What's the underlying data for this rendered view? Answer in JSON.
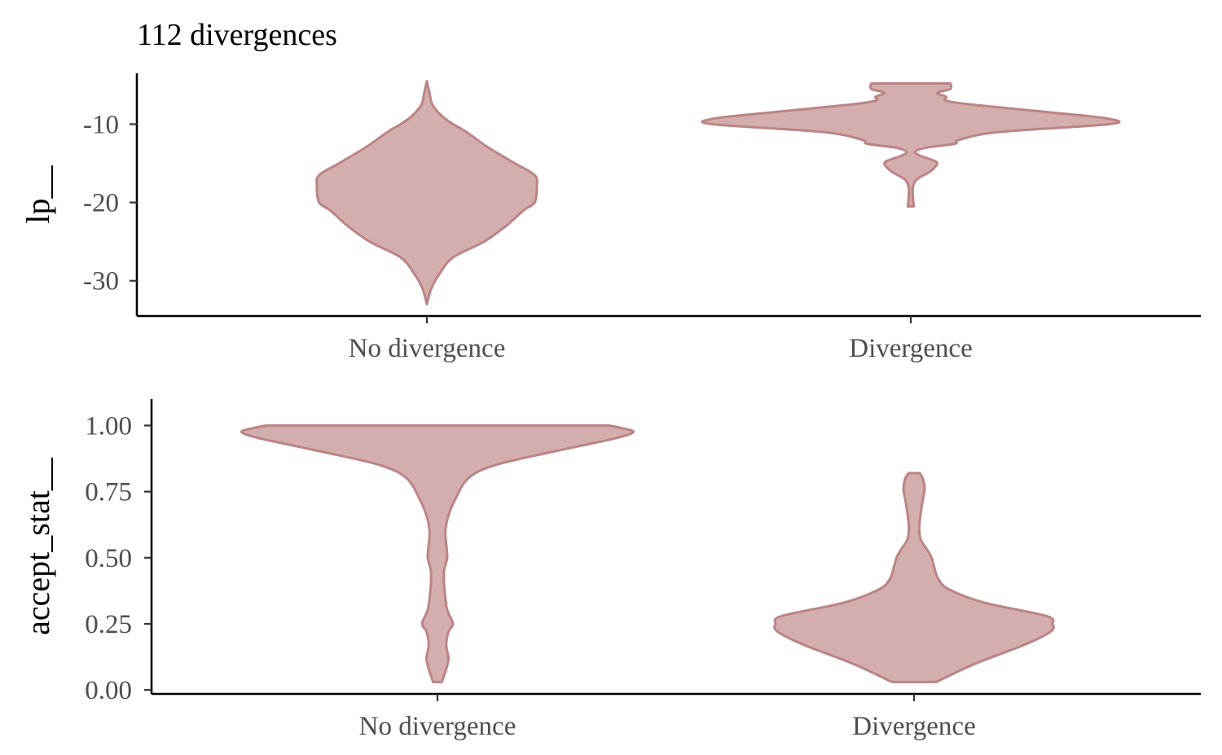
{
  "title": "112 divergences",
  "colors": {
    "fill": "#d4adae",
    "outline": "#bb8485"
  },
  "chart_data": [
    {
      "type": "violin",
      "ylabel": "lp__",
      "xlabel": "",
      "categories": [
        "No divergence",
        "Divergence"
      ],
      "ylim": [
        -34.5,
        -3.5
      ],
      "yticks": [
        -10,
        -20,
        -30
      ],
      "ytick_labels": [
        "-10",
        "-20",
        "-30"
      ],
      "series": [
        {
          "category": "No divergence",
          "profile": [
            [
              -33.0,
              0.0
            ],
            [
              -31.0,
              0.01
            ],
            [
              -29.0,
              0.03
            ],
            [
              -27.0,
              0.06
            ],
            [
              -25.0,
              0.13
            ],
            [
              -23.0,
              0.18
            ],
            [
              -21.0,
              0.22
            ],
            [
              -20.0,
              0.245
            ],
            [
              -18.0,
              0.25
            ],
            [
              -16.5,
              0.245
            ],
            [
              -15.0,
              0.2
            ],
            [
              -13.0,
              0.14
            ],
            [
              -11.0,
              0.09
            ],
            [
              -10.0,
              0.06
            ],
            [
              -9.0,
              0.035
            ],
            [
              -7.5,
              0.0125
            ],
            [
              -6.0,
              0.006
            ],
            [
              -4.5,
              0.0
            ]
          ]
        },
        {
          "category": "Divergence",
          "profile": [
            [
              -20.5,
              0.007
            ],
            [
              -19.5,
              0.005
            ],
            [
              -18.0,
              0.005
            ],
            [
              -17.0,
              0.015
            ],
            [
              -16.0,
              0.045
            ],
            [
              -15.0,
              0.06
            ],
            [
              -14.5,
              0.045
            ],
            [
              -14.0,
              0.02
            ],
            [
              -13.5,
              0.01
            ],
            [
              -13.0,
              0.035
            ],
            [
              -12.5,
              0.1
            ],
            [
              -12.0,
              0.11
            ],
            [
              -11.0,
              0.2
            ],
            [
              -10.0,
              0.45
            ],
            [
              -9.3,
              0.45
            ],
            [
              -8.5,
              0.32
            ],
            [
              -7.5,
              0.14
            ],
            [
              -7.0,
              0.08
            ],
            [
              -6.5,
              0.08
            ],
            [
              -6.0,
              0.06
            ],
            [
              -5.5,
              0.09
            ],
            [
              -4.8,
              0.09
            ]
          ]
        }
      ]
    },
    {
      "type": "violin",
      "ylabel": "accept_stat__",
      "xlabel": "",
      "categories": [
        "No divergence",
        "Divergence"
      ],
      "ylim": [
        -0.015,
        1.1
      ],
      "yticks": [
        1.0,
        0.75,
        0.5,
        0.25,
        0.0
      ],
      "ytick_labels": [
        "1.00",
        "0.75",
        "0.50",
        "0.25",
        "0.00"
      ],
      "series": [
        {
          "category": "No divergence",
          "profile": [
            [
              0.03,
              0.01
            ],
            [
              0.08,
              0.02
            ],
            [
              0.12,
              0.025
            ],
            [
              0.17,
              0.02
            ],
            [
              0.22,
              0.025
            ],
            [
              0.25,
              0.035
            ],
            [
              0.29,
              0.025
            ],
            [
              0.32,
              0.02
            ],
            [
              0.4,
              0.015
            ],
            [
              0.45,
              0.015
            ],
            [
              0.5,
              0.022
            ],
            [
              0.55,
              0.02
            ],
            [
              0.6,
              0.018
            ],
            [
              0.66,
              0.025
            ],
            [
              0.72,
              0.04
            ],
            [
              0.8,
              0.07
            ],
            [
              0.85,
              0.13
            ],
            [
              0.9,
              0.26
            ],
            [
              0.95,
              0.4
            ],
            [
              0.975,
              0.445
            ],
            [
              0.99,
              0.42
            ],
            [
              1.0,
              0.39
            ]
          ]
        },
        {
          "category": "Divergence",
          "profile": [
            [
              0.03,
              0.05
            ],
            [
              0.1,
              0.14
            ],
            [
              0.17,
              0.25
            ],
            [
              0.22,
              0.31
            ],
            [
              0.25,
              0.315
            ],
            [
              0.28,
              0.3
            ],
            [
              0.33,
              0.16
            ],
            [
              0.38,
              0.08
            ],
            [
              0.42,
              0.055
            ],
            [
              0.47,
              0.045
            ],
            [
              0.5,
              0.04
            ],
            [
              0.53,
              0.03
            ],
            [
              0.57,
              0.015
            ],
            [
              0.62,
              0.012
            ],
            [
              0.7,
              0.018
            ],
            [
              0.76,
              0.024
            ],
            [
              0.8,
              0.02
            ],
            [
              0.82,
              0.0125
            ]
          ]
        }
      ]
    }
  ]
}
